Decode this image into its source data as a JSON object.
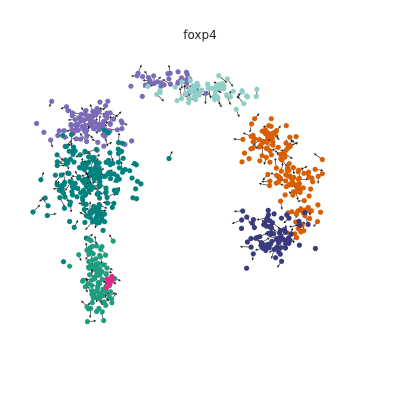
{
  "figure": {
    "title": "foxp4"
  },
  "chart_data": {
    "type": "scatter",
    "title": "foxp4",
    "xlabel": "",
    "ylabel": "",
    "grid": false,
    "axes_visible": false,
    "xlim": [
      0,
      100
    ],
    "ylim": [
      0,
      100
    ],
    "arrow_color": "#1a1a1a",
    "clusters": [
      {
        "color": "#7b6bb8",
        "center": [
          16,
          73
        ],
        "spread": [
          6,
          3.5
        ],
        "count": 90
      },
      {
        "color": "#7b6bb8",
        "center": [
          39,
          88
        ],
        "spread": [
          5,
          2
        ],
        "count": 35
      },
      {
        "color": "#8fd0c6",
        "center": [
          52,
          85
        ],
        "spread": [
          7,
          2.2
        ],
        "count": 60
      },
      {
        "color": "#00827f",
        "center": [
          16,
          56
        ],
        "spread": [
          7,
          6
        ],
        "count": 170
      },
      {
        "color": "#00827f",
        "center": [
          17,
          43
        ],
        "spread": [
          3,
          3
        ],
        "count": 30
      },
      {
        "color": "#1f9e7f",
        "center": [
          18,
          20
        ],
        "spread": [
          2.5,
          6
        ],
        "count": 70
      },
      {
        "color": "#1f9e7f",
        "center": [
          17,
          30
        ],
        "spread": [
          1.5,
          3.5
        ],
        "count": 20
      },
      {
        "color": "#d95f02",
        "center": [
          71,
          68
        ],
        "spread": [
          4,
          4
        ],
        "count": 60
      },
      {
        "color": "#d95f02",
        "center": [
          79,
          55
        ],
        "spread": [
          4,
          3
        ],
        "count": 55
      },
      {
        "color": "#d95f02",
        "center": [
          81,
          44
        ],
        "spread": [
          2.5,
          3.5
        ],
        "count": 30
      },
      {
        "color": "#3a3a80",
        "center": [
          73,
          36
        ],
        "spread": [
          5,
          4
        ],
        "count": 80
      },
      {
        "color": "#e7298a",
        "center": [
          22,
          21
        ],
        "spread": [
          1,
          1
        ],
        "count": 8
      }
    ]
  }
}
